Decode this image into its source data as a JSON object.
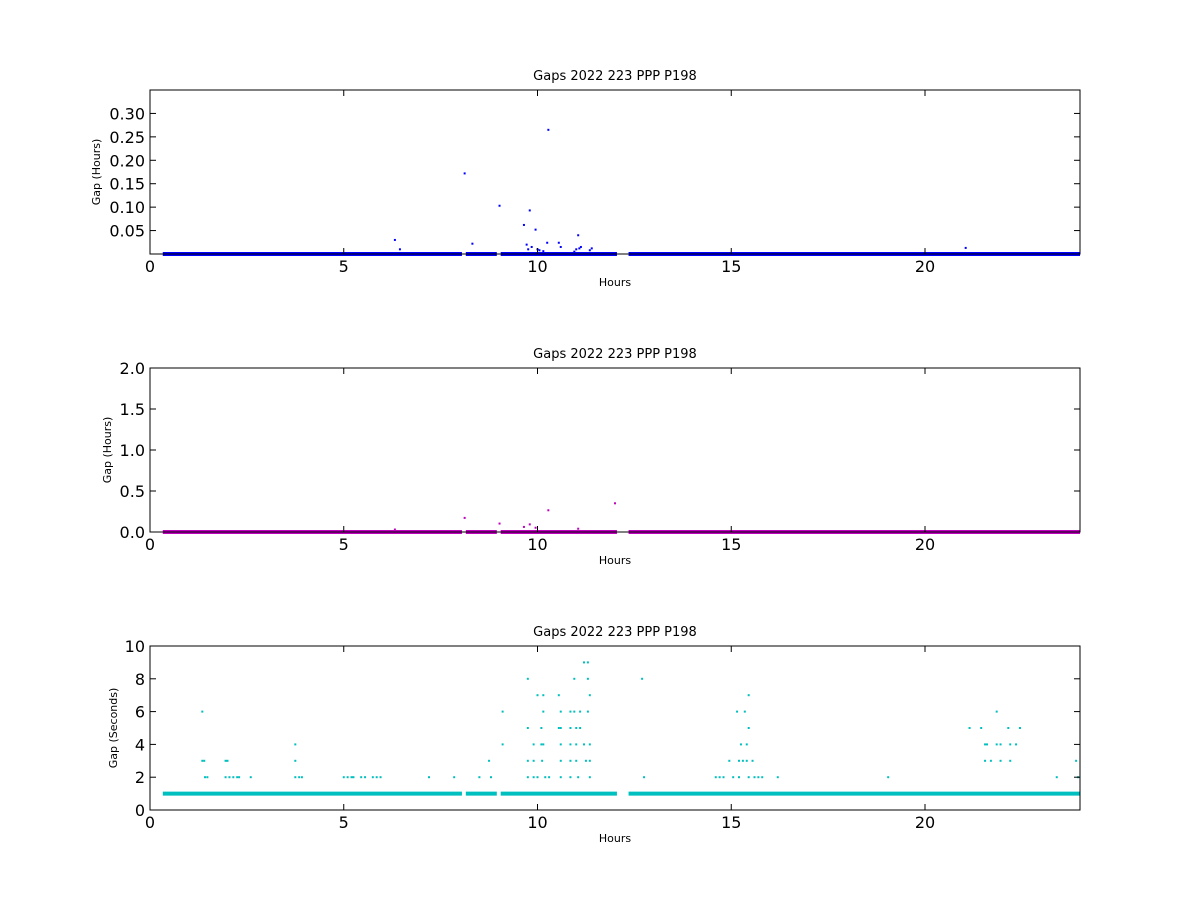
{
  "chart_data": [
    {
      "type": "scatter",
      "title": "Gaps 2022 223 PPP  P198",
      "xlabel": "Hours",
      "ylabel": "Gap (Hours)",
      "xlim": [
        0,
        24
      ],
      "ylim": [
        0,
        0.35
      ],
      "xticks": [
        0,
        5,
        10,
        15,
        20
      ],
      "yticks": [
        0.05,
        0.1,
        0.15,
        0.2,
        0.25,
        0.3
      ],
      "ytick_labels": [
        "0.05",
        "0.10",
        "0.15",
        "0.20",
        "0.25",
        "0.30"
      ],
      "grid": false,
      "color": "#0000ff",
      "baseline": {
        "y": 0.0,
        "segments": [
          [
            0.33,
            8.05
          ],
          [
            8.15,
            8.95
          ],
          [
            9.05,
            12.05
          ],
          [
            12.35,
            24.0
          ]
        ]
      },
      "points": [
        {
          "x": 6.32,
          "y": 0.03
        },
        {
          "x": 6.45,
          "y": 0.01
        },
        {
          "x": 8.12,
          "y": 0.172
        },
        {
          "x": 8.32,
          "y": 0.022
        },
        {
          "x": 9.02,
          "y": 0.103
        },
        {
          "x": 9.65,
          "y": 0.062
        },
        {
          "x": 9.72,
          "y": 0.02
        },
        {
          "x": 9.76,
          "y": 0.01
        },
        {
          "x": 9.8,
          "y": 0.093
        },
        {
          "x": 9.85,
          "y": 0.015
        },
        {
          "x": 9.95,
          "y": 0.052
        },
        {
          "x": 10.0,
          "y": 0.01
        },
        {
          "x": 10.05,
          "y": 0.008
        },
        {
          "x": 10.15,
          "y": 0.006
        },
        {
          "x": 10.25,
          "y": 0.024
        },
        {
          "x": 10.28,
          "y": 0.265
        },
        {
          "x": 10.55,
          "y": 0.024
        },
        {
          "x": 10.6,
          "y": 0.015
        },
        {
          "x": 10.95,
          "y": 0.005
        },
        {
          "x": 11.0,
          "y": 0.01
        },
        {
          "x": 11.05,
          "y": 0.04
        },
        {
          "x": 11.08,
          "y": 0.012
        },
        {
          "x": 11.12,
          "y": 0.015
        },
        {
          "x": 11.35,
          "y": 0.008
        },
        {
          "x": 11.4,
          "y": 0.012
        },
        {
          "x": 21.05,
          "y": 0.013
        }
      ]
    },
    {
      "type": "scatter",
      "title": "Gaps 2022 223 PPP  P198",
      "xlabel": "Hours",
      "ylabel": "Gap (Hours)",
      "xlim": [
        0,
        24
      ],
      "ylim": [
        0,
        2.0
      ],
      "xticks": [
        0,
        5,
        10,
        15,
        20
      ],
      "yticks": [
        0.0,
        0.5,
        1.0,
        1.5,
        2.0
      ],
      "ytick_labels": [
        "0.0",
        "0.5",
        "1.0",
        "1.5",
        "2.0"
      ],
      "grid": false,
      "color": "#bf00bf",
      "baseline": {
        "y": 0.0,
        "segments": [
          [
            0.33,
            8.05
          ],
          [
            8.15,
            8.95
          ],
          [
            9.05,
            12.05
          ],
          [
            12.35,
            24.0
          ]
        ]
      },
      "points": [
        {
          "x": 6.32,
          "y": 0.03
        },
        {
          "x": 8.12,
          "y": 0.172
        },
        {
          "x": 9.02,
          "y": 0.103
        },
        {
          "x": 9.65,
          "y": 0.062
        },
        {
          "x": 9.8,
          "y": 0.093
        },
        {
          "x": 9.95,
          "y": 0.052
        },
        {
          "x": 10.28,
          "y": 0.265
        },
        {
          "x": 11.05,
          "y": 0.04
        },
        {
          "x": 12.0,
          "y": 0.35
        }
      ]
    },
    {
      "type": "scatter",
      "title": "Gaps 2022 223 PPP  P198",
      "xlabel": "Hours",
      "ylabel": "Gap (Seconds)",
      "xlim": [
        0,
        24
      ],
      "ylim": [
        0,
        10
      ],
      "xticks": [
        0,
        5,
        10,
        15,
        20
      ],
      "yticks": [
        0,
        2,
        4,
        6,
        8,
        10
      ],
      "ytick_labels": [
        "0",
        "2",
        "4",
        "6",
        "8",
        "10"
      ],
      "grid": false,
      "color": "#00bfbf",
      "baseline": {
        "y": 1.0,
        "segments": [
          [
            0.33,
            8.05
          ],
          [
            8.15,
            8.95
          ],
          [
            9.05,
            12.05
          ],
          [
            12.35,
            24.0
          ]
        ]
      },
      "points": [
        {
          "x": 1.35,
          "y": 6
        },
        {
          "x": 1.35,
          "y": 3
        },
        {
          "x": 1.4,
          "y": 3
        },
        {
          "x": 1.42,
          "y": 2
        },
        {
          "x": 1.48,
          "y": 2
        },
        {
          "x": 1.95,
          "y": 3
        },
        {
          "x": 2.0,
          "y": 3
        },
        {
          "x": 1.95,
          "y": 2
        },
        {
          "x": 2.05,
          "y": 2
        },
        {
          "x": 2.15,
          "y": 2
        },
        {
          "x": 2.25,
          "y": 2
        },
        {
          "x": 2.3,
          "y": 2
        },
        {
          "x": 2.6,
          "y": 2
        },
        {
          "x": 3.75,
          "y": 4
        },
        {
          "x": 3.75,
          "y": 3
        },
        {
          "x": 3.75,
          "y": 2
        },
        {
          "x": 3.85,
          "y": 2
        },
        {
          "x": 3.92,
          "y": 2
        },
        {
          "x": 5.0,
          "y": 2
        },
        {
          "x": 5.1,
          "y": 2
        },
        {
          "x": 5.2,
          "y": 2
        },
        {
          "x": 5.25,
          "y": 2
        },
        {
          "x": 5.45,
          "y": 2
        },
        {
          "x": 5.55,
          "y": 2
        },
        {
          "x": 5.75,
          "y": 2
        },
        {
          "x": 5.85,
          "y": 2
        },
        {
          "x": 5.95,
          "y": 2
        },
        {
          "x": 7.2,
          "y": 2
        },
        {
          "x": 7.85,
          "y": 2
        },
        {
          "x": 8.5,
          "y": 2
        },
        {
          "x": 8.75,
          "y": 3
        },
        {
          "x": 8.8,
          "y": 2
        },
        {
          "x": 9.1,
          "y": 6
        },
        {
          "x": 9.1,
          "y": 4
        },
        {
          "x": 9.75,
          "y": 8
        },
        {
          "x": 9.75,
          "y": 5
        },
        {
          "x": 9.75,
          "y": 3
        },
        {
          "x": 9.75,
          "y": 2
        },
        {
          "x": 9.9,
          "y": 4
        },
        {
          "x": 9.9,
          "y": 3
        },
        {
          "x": 9.9,
          "y": 2
        },
        {
          "x": 10.0,
          "y": 7
        },
        {
          "x": 10.0,
          "y": 2
        },
        {
          "x": 10.1,
          "y": 5
        },
        {
          "x": 10.1,
          "y": 4
        },
        {
          "x": 10.12,
          "y": 3
        },
        {
          "x": 10.15,
          "y": 7
        },
        {
          "x": 10.15,
          "y": 6
        },
        {
          "x": 10.15,
          "y": 4
        },
        {
          "x": 10.2,
          "y": 2
        },
        {
          "x": 10.3,
          "y": 2
        },
        {
          "x": 10.55,
          "y": 7
        },
        {
          "x": 10.55,
          "y": 5
        },
        {
          "x": 10.6,
          "y": 6
        },
        {
          "x": 10.6,
          "y": 5
        },
        {
          "x": 10.6,
          "y": 4
        },
        {
          "x": 10.6,
          "y": 3
        },
        {
          "x": 10.6,
          "y": 2
        },
        {
          "x": 10.85,
          "y": 6
        },
        {
          "x": 10.85,
          "y": 5
        },
        {
          "x": 10.85,
          "y": 4
        },
        {
          "x": 10.85,
          "y": 3
        },
        {
          "x": 10.85,
          "y": 2
        },
        {
          "x": 10.95,
          "y": 8
        },
        {
          "x": 10.95,
          "y": 6
        },
        {
          "x": 11.0,
          "y": 5
        },
        {
          "x": 11.0,
          "y": 4
        },
        {
          "x": 11.0,
          "y": 3
        },
        {
          "x": 11.05,
          "y": 2
        },
        {
          "x": 11.1,
          "y": 6
        },
        {
          "x": 11.1,
          "y": 5
        },
        {
          "x": 11.2,
          "y": 9
        },
        {
          "x": 11.2,
          "y": 4
        },
        {
          "x": 11.25,
          "y": 3
        },
        {
          "x": 11.3,
          "y": 9
        },
        {
          "x": 11.3,
          "y": 8
        },
        {
          "x": 11.3,
          "y": 6
        },
        {
          "x": 11.35,
          "y": 7
        },
        {
          "x": 11.35,
          "y": 4
        },
        {
          "x": 11.35,
          "y": 3
        },
        {
          "x": 11.35,
          "y": 2
        },
        {
          "x": 12.7,
          "y": 8
        },
        {
          "x": 12.75,
          "y": 2
        },
        {
          "x": 14.6,
          "y": 2
        },
        {
          "x": 14.7,
          "y": 2
        },
        {
          "x": 14.8,
          "y": 2
        },
        {
          "x": 14.95,
          "y": 3
        },
        {
          "x": 15.05,
          "y": 2
        },
        {
          "x": 15.15,
          "y": 6
        },
        {
          "x": 15.2,
          "y": 3
        },
        {
          "x": 15.2,
          "y": 2
        },
        {
          "x": 15.25,
          "y": 4
        },
        {
          "x": 15.3,
          "y": 3
        },
        {
          "x": 15.35,
          "y": 6
        },
        {
          "x": 15.4,
          "y": 4
        },
        {
          "x": 15.4,
          "y": 3
        },
        {
          "x": 15.45,
          "y": 7
        },
        {
          "x": 15.45,
          "y": 5
        },
        {
          "x": 15.45,
          "y": 2
        },
        {
          "x": 15.55,
          "y": 3
        },
        {
          "x": 15.6,
          "y": 2
        },
        {
          "x": 15.7,
          "y": 2
        },
        {
          "x": 15.8,
          "y": 2
        },
        {
          "x": 16.2,
          "y": 2
        },
        {
          "x": 19.05,
          "y": 2
        },
        {
          "x": 21.15,
          "y": 5
        },
        {
          "x": 21.45,
          "y": 5
        },
        {
          "x": 21.55,
          "y": 4
        },
        {
          "x": 21.55,
          "y": 3
        },
        {
          "x": 21.6,
          "y": 4
        },
        {
          "x": 21.7,
          "y": 3
        },
        {
          "x": 21.85,
          "y": 6
        },
        {
          "x": 21.85,
          "y": 4
        },
        {
          "x": 21.95,
          "y": 4
        },
        {
          "x": 21.95,
          "y": 3
        },
        {
          "x": 22.15,
          "y": 5
        },
        {
          "x": 22.2,
          "y": 4
        },
        {
          "x": 22.2,
          "y": 3
        },
        {
          "x": 22.35,
          "y": 4
        },
        {
          "x": 22.45,
          "y": 5
        },
        {
          "x": 23.4,
          "y": 2
        },
        {
          "x": 23.9,
          "y": 3
        },
        {
          "x": 23.95,
          "y": 2
        }
      ]
    }
  ]
}
